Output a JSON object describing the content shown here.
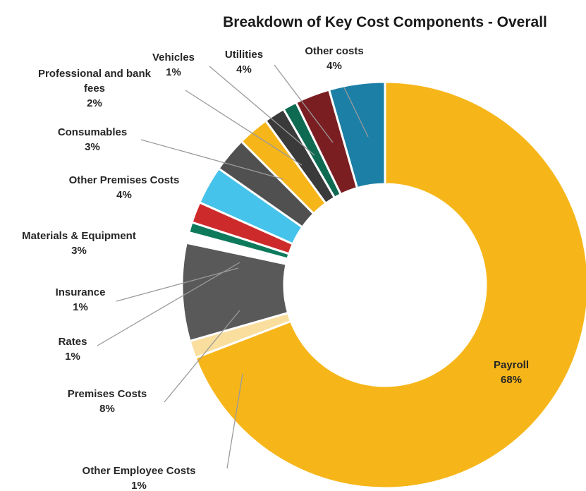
{
  "chart_data": {
    "type": "pie",
    "variant": "donut",
    "title": "Breakdown of Key Cost Components - Overall",
    "start": "12 o'clock",
    "direction": "clockwise",
    "slices": [
      {
        "label": [
          "Payroll"
        ],
        "value_text": "68%",
        "value": 68,
        "color": "#F6B61A"
      },
      {
        "label": [
          "Other Employee Costs"
        ],
        "value_text": "1%",
        "value": 1,
        "color": "#F9DE9E"
      },
      {
        "label": [
          "Premises Costs"
        ],
        "value_text": "8%",
        "value": 8,
        "color": "#595959"
      },
      {
        "label": [
          "Rates"
        ],
        "value_text": "1%",
        "value": 1,
        "color": "#FFFFFF"
      },
      {
        "label": [
          "Insurance"
        ],
        "value_text": "1%",
        "value": 1,
        "color": "#0E7A5C"
      },
      {
        "label": [
          "Materials & Equipment"
        ],
        "value_text": "3%",
        "value": 3,
        "color": "#CD2B2B"
      },
      {
        "label": [
          "Other Premises Costs"
        ],
        "value_text": "4%",
        "value": 4,
        "color": "#45C3EA"
      },
      {
        "label": [
          "Consumables"
        ],
        "value_text": "3%",
        "value": 3,
        "color": "#505050"
      },
      {
        "label": [
          "Professional and bank",
          "fees"
        ],
        "value_text": "2%",
        "value": 2,
        "color": "#F6B61A"
      },
      {
        "label": [
          "Vehicles"
        ],
        "value_text": "1%",
        "value": 1,
        "color": "#3A3A3A"
      },
      {
        "label": [
          "Utilities"
        ],
        "value_text": "4%",
        "value": 4,
        "color": "#0E6B52"
      },
      {
        "label": [
          "Other costs"
        ],
        "value_text": "4%",
        "value": 4,
        "color": "#7A1E22"
      }
    ],
    "extra_slice_color": "#1B7FA6",
    "legend": "none"
  }
}
